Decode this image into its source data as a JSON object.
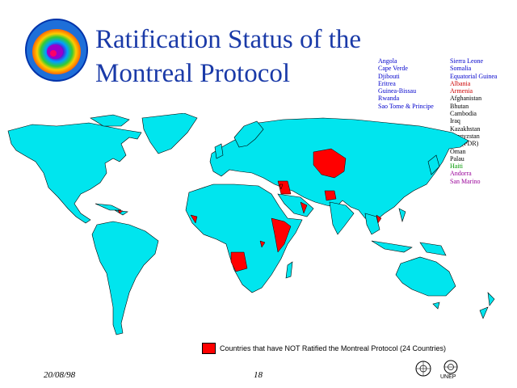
{
  "title_lines": [
    "Ratification Status of the",
    "Montreal Protocol"
  ],
  "lists": {
    "col_a": [
      {
        "name": "Angola",
        "color": "#0000cc"
      },
      {
        "name": "Cape Verde",
        "color": "#0000cc"
      },
      {
        "name": "Djibouti",
        "color": "#0000cc"
      },
      {
        "name": "Eritrea",
        "color": "#0000cc"
      },
      {
        "name": "Guinea-Bissau",
        "color": "#0000cc"
      },
      {
        "name": "Rwanda",
        "color": "#0000cc"
      },
      {
        "name": "Sao Tome & Principe",
        "color": "#0000cc"
      }
    ],
    "col_b": [
      {
        "name": "Sierra Leone",
        "color": "#0000cc"
      },
      {
        "name": "Somalia",
        "color": "#0000cc"
      },
      {
        "name": "Equatorial Guinea",
        "color": "#0000cc"
      },
      {
        "name": "Albania",
        "color": "#cc0000"
      },
      {
        "name": "Armenia",
        "color": "#cc0000"
      },
      {
        "name": "Afghanistan",
        "color": "#000000"
      },
      {
        "name": "Bhutan",
        "color": "#000000"
      },
      {
        "name": "Cambodia",
        "color": "#000000"
      },
      {
        "name": "Iraq",
        "color": "#000000"
      },
      {
        "name": "Kazakhstan",
        "color": "#000000"
      },
      {
        "name": "Kyrgyzstan",
        "color": "#000000"
      },
      {
        "name": "Lao (PDR)",
        "color": "#000000"
      },
      {
        "name": "Oman",
        "color": "#000000"
      },
      {
        "name": "Palau",
        "color": "#000000"
      },
      {
        "name": "Haiti",
        "color": "#009900"
      },
      {
        "name": "Andorra",
        "color": "#990099"
      },
      {
        "name": "San Marino",
        "color": "#990099"
      }
    ]
  },
  "legend": {
    "label": "Countries that have NOT Ratified the Montreal Protocol (24 Countries)",
    "color": "#ff0000"
  },
  "colors": {
    "land": "#00e5ee",
    "not_ratified": "#ff0000",
    "title": "#1a3aa8"
  },
  "footer": {
    "date": "20/08/98",
    "page": "18",
    "org": "UNEP"
  }
}
